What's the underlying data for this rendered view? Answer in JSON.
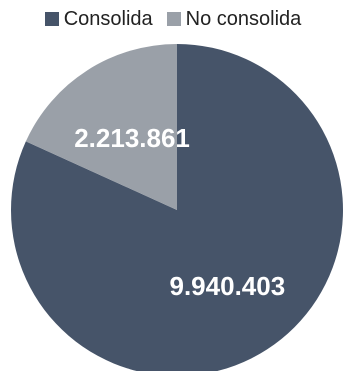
{
  "chart_data": {
    "type": "pie",
    "title": "",
    "series": [
      {
        "name": "Consolida",
        "value": 9940403,
        "label": "9.940.403",
        "color": "#465469"
      },
      {
        "name": "No consolida",
        "value": 2213861,
        "label": "2.213.861",
        "color": "#9aa0a8"
      }
    ],
    "start_angle_deg": 0,
    "direction": "clockwise",
    "legend_position": "top"
  }
}
